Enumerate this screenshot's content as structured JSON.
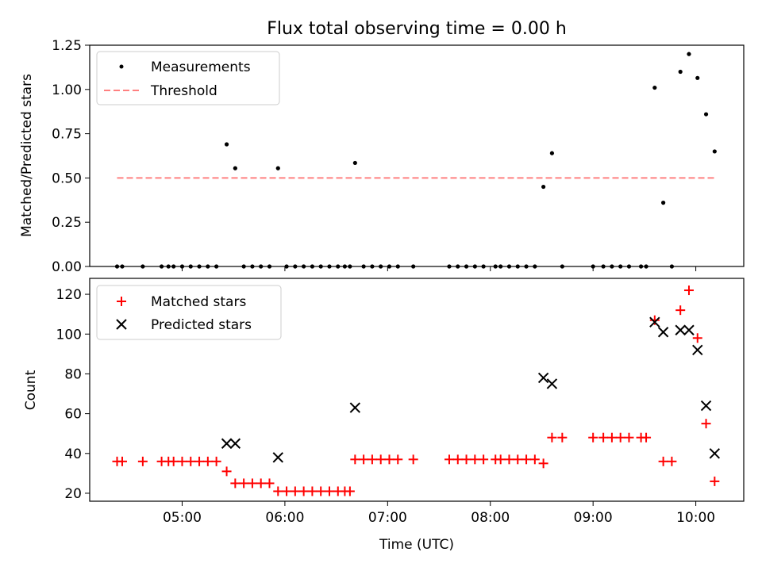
{
  "figure": {
    "title": "Flux total observing time = 0.00 h",
    "colors": {
      "measurements": "#000000",
      "threshold": "#ff8080",
      "matched": "#ff0000",
      "predicted": "#000000"
    }
  },
  "chart_data": [
    {
      "type": "scatter",
      "title": "Flux total observing time = 0.00 h",
      "xlabel": "",
      "ylabel": "Matched/Predicted stars",
      "xlim": [
        "04:06",
        "10:28"
      ],
      "ylim": [
        0,
        1.25
      ],
      "yticks": [
        0.0,
        0.25,
        0.5,
        0.75,
        1.0,
        1.25
      ],
      "ytick_labels": [
        "0.00",
        "0.25",
        "0.50",
        "0.75",
        "1.00",
        "1.25"
      ],
      "legend_position": "upper-left",
      "legend": {
        "measurements": "Measurements",
        "threshold": "Threshold"
      },
      "series": [
        {
          "name": "Measurements",
          "marker": "dot",
          "points": [
            [
              "04:22",
              0
            ],
            [
              "04:25",
              0
            ],
            [
              "04:37",
              0
            ],
            [
              "04:48",
              0
            ],
            [
              "04:52",
              0
            ],
            [
              "04:55",
              0
            ],
            [
              "05:00",
              0
            ],
            [
              "05:05",
              0
            ],
            [
              "05:10",
              0
            ],
            [
              "05:15",
              0
            ],
            [
              "05:20",
              0
            ],
            [
              "05:26",
              0.69
            ],
            [
              "05:31",
              0.555
            ],
            [
              "05:36",
              0
            ],
            [
              "05:41",
              0
            ],
            [
              "05:46",
              0
            ],
            [
              "05:51",
              0
            ],
            [
              "05:56",
              0.555
            ],
            [
              "06:01",
              0
            ],
            [
              "06:06",
              0
            ],
            [
              "06:11",
              0
            ],
            [
              "06:16",
              0
            ],
            [
              "06:21",
              0
            ],
            [
              "06:26",
              0
            ],
            [
              "06:31",
              0
            ],
            [
              "06:35",
              0
            ],
            [
              "06:38",
              0
            ],
            [
              "06:41",
              0.585
            ],
            [
              "06:46",
              0
            ],
            [
              "06:51",
              0
            ],
            [
              "06:56",
              0
            ],
            [
              "07:01",
              0
            ],
            [
              "07:06",
              0
            ],
            [
              "07:15",
              0
            ],
            [
              "07:36",
              0
            ],
            [
              "07:41",
              0
            ],
            [
              "07:46",
              0
            ],
            [
              "07:51",
              0
            ],
            [
              "07:56",
              0
            ],
            [
              "08:03",
              0
            ],
            [
              "08:06",
              0
            ],
            [
              "08:11",
              0
            ],
            [
              "08:16",
              0
            ],
            [
              "08:21",
              0
            ],
            [
              "08:26",
              0
            ],
            [
              "08:31",
              0.45
            ],
            [
              "08:36",
              0.64
            ],
            [
              "08:42",
              0
            ],
            [
              "09:00",
              0
            ],
            [
              "09:06",
              0
            ],
            [
              "09:11",
              0
            ],
            [
              "09:16",
              0
            ],
            [
              "09:21",
              0
            ],
            [
              "09:28",
              0
            ],
            [
              "09:31",
              0
            ],
            [
              "09:36",
              1.01
            ],
            [
              "09:41",
              0.36
            ],
            [
              "09:46",
              0
            ],
            [
              "09:51",
              1.1
            ],
            [
              "09:56",
              1.2
            ],
            [
              "10:01",
              1.065
            ],
            [
              "10:06",
              0.86
            ],
            [
              "10:11",
              0.65
            ]
          ]
        },
        {
          "name": "Threshold",
          "marker": "dashed-line",
          "points": [
            [
              "04:22",
              0.5
            ],
            [
              "10:11",
              0.5
            ]
          ]
        }
      ]
    },
    {
      "type": "scatter",
      "title": "",
      "xlabel": "Time (UTC)",
      "ylabel": "Count",
      "xlim": [
        "04:06",
        "10:28"
      ],
      "ylim": [
        16,
        128
      ],
      "yticks": [
        20,
        40,
        60,
        80,
        100,
        120
      ],
      "ytick_labels": [
        "20",
        "40",
        "60",
        "80",
        "100",
        "120"
      ],
      "xticks": [
        "05:00",
        "06:00",
        "07:00",
        "08:00",
        "09:00",
        "10:00"
      ],
      "xtick_labels": [
        "05:00",
        "06:00",
        "07:00",
        "08:00",
        "09:00",
        "10:00"
      ],
      "legend_position": "upper-left",
      "legend": {
        "matched": "Matched stars",
        "predicted": "Predicted stars"
      },
      "series": [
        {
          "name": "Matched stars",
          "marker": "plus",
          "points": [
            [
              "04:22",
              36
            ],
            [
              "04:25",
              36
            ],
            [
              "04:37",
              36
            ],
            [
              "04:48",
              36
            ],
            [
              "04:52",
              36
            ],
            [
              "04:55",
              36
            ],
            [
              "05:00",
              36
            ],
            [
              "05:05",
              36
            ],
            [
              "05:10",
              36
            ],
            [
              "05:15",
              36
            ],
            [
              "05:20",
              36
            ],
            [
              "05:26",
              31
            ],
            [
              "05:31",
              25
            ],
            [
              "05:36",
              25
            ],
            [
              "05:41",
              25
            ],
            [
              "05:46",
              25
            ],
            [
              "05:51",
              25
            ],
            [
              "05:56",
              21
            ],
            [
              "06:01",
              21
            ],
            [
              "06:06",
              21
            ],
            [
              "06:11",
              21
            ],
            [
              "06:16",
              21
            ],
            [
              "06:21",
              21
            ],
            [
              "06:26",
              21
            ],
            [
              "06:31",
              21
            ],
            [
              "06:35",
              21
            ],
            [
              "06:38",
              21
            ],
            [
              "06:41",
              37
            ],
            [
              "06:46",
              37
            ],
            [
              "06:51",
              37
            ],
            [
              "06:56",
              37
            ],
            [
              "07:01",
              37
            ],
            [
              "07:06",
              37
            ],
            [
              "07:15",
              37
            ],
            [
              "07:36",
              37
            ],
            [
              "07:41",
              37
            ],
            [
              "07:46",
              37
            ],
            [
              "07:51",
              37
            ],
            [
              "07:56",
              37
            ],
            [
              "08:03",
              37
            ],
            [
              "08:06",
              37
            ],
            [
              "08:11",
              37
            ],
            [
              "08:16",
              37
            ],
            [
              "08:21",
              37
            ],
            [
              "08:26",
              37
            ],
            [
              "08:31",
              35
            ],
            [
              "08:36",
              48
            ],
            [
              "08:42",
              48
            ],
            [
              "09:00",
              48
            ],
            [
              "09:06",
              48
            ],
            [
              "09:11",
              48
            ],
            [
              "09:16",
              48
            ],
            [
              "09:21",
              48
            ],
            [
              "09:28",
              48
            ],
            [
              "09:31",
              48
            ],
            [
              "09:36",
              107
            ],
            [
              "09:41",
              36
            ],
            [
              "09:46",
              36
            ],
            [
              "09:51",
              112
            ],
            [
              "09:56",
              122
            ],
            [
              "10:01",
              98
            ],
            [
              "10:06",
              55
            ],
            [
              "10:11",
              26
            ]
          ]
        },
        {
          "name": "Predicted stars",
          "marker": "x",
          "points": [
            [
              "05:26",
              45
            ],
            [
              "05:31",
              45
            ],
            [
              "05:56",
              38
            ],
            [
              "06:41",
              63
            ],
            [
              "08:31",
              78
            ],
            [
              "08:36",
              75
            ],
            [
              "09:36",
              106
            ],
            [
              "09:41",
              101
            ],
            [
              "09:51",
              102
            ],
            [
              "09:56",
              102
            ],
            [
              "10:01",
              92
            ],
            [
              "10:06",
              64
            ],
            [
              "10:11",
              40
            ]
          ]
        }
      ]
    }
  ]
}
